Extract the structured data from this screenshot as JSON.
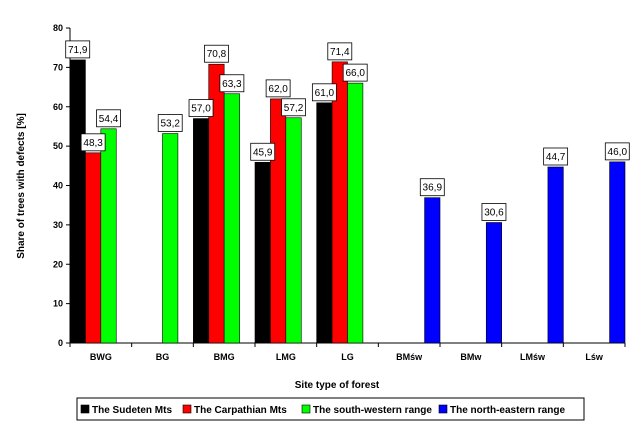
{
  "chart_data": {
    "type": "bar",
    "xlabel": "Site type of forest",
    "ylabel": "Share of trees with defects [%]",
    "ylim": [
      0,
      80
    ],
    "yticks": [
      0,
      10,
      20,
      30,
      40,
      50,
      60,
      70,
      80
    ],
    "grid": false,
    "legend_position": "bottom",
    "categories": [
      "BWG",
      "BG",
      "BMG",
      "LMG",
      "LG",
      "BMśw",
      "BMw",
      "LMśw",
      "Lśw"
    ],
    "series": [
      {
        "name": "The Sudeten Mts",
        "color": "#000000",
        "values": [
          71.9,
          null,
          57.0,
          45.9,
          61.0,
          null,
          null,
          null,
          null
        ],
        "labels": [
          "71,9",
          null,
          "57,0",
          "45,9",
          "61,0",
          null,
          null,
          null,
          null
        ]
      },
      {
        "name": "The Carpathian Mts",
        "color": "#ff0000",
        "values": [
          48.3,
          null,
          70.8,
          62.0,
          71.4,
          null,
          null,
          null,
          null
        ],
        "labels": [
          "48,3",
          null,
          "70,8",
          "62,0",
          "71,4",
          null,
          null,
          null,
          null
        ]
      },
      {
        "name": "The south-western range",
        "color": "#00ff00",
        "values": [
          54.4,
          53.2,
          63.3,
          57.2,
          66.0,
          null,
          null,
          null,
          null
        ],
        "labels": [
          "54,4",
          "53,2",
          "63,3",
          "57,2",
          "66,0",
          null,
          null,
          null,
          null
        ]
      },
      {
        "name": "The north-eastern range",
        "color": "#0000ff",
        "values": [
          null,
          null,
          null,
          null,
          null,
          36.9,
          30.6,
          44.7,
          46.0
        ],
        "labels": [
          null,
          null,
          null,
          null,
          null,
          "36,9",
          "30,6",
          "44,7",
          "46,0"
        ]
      }
    ]
  }
}
